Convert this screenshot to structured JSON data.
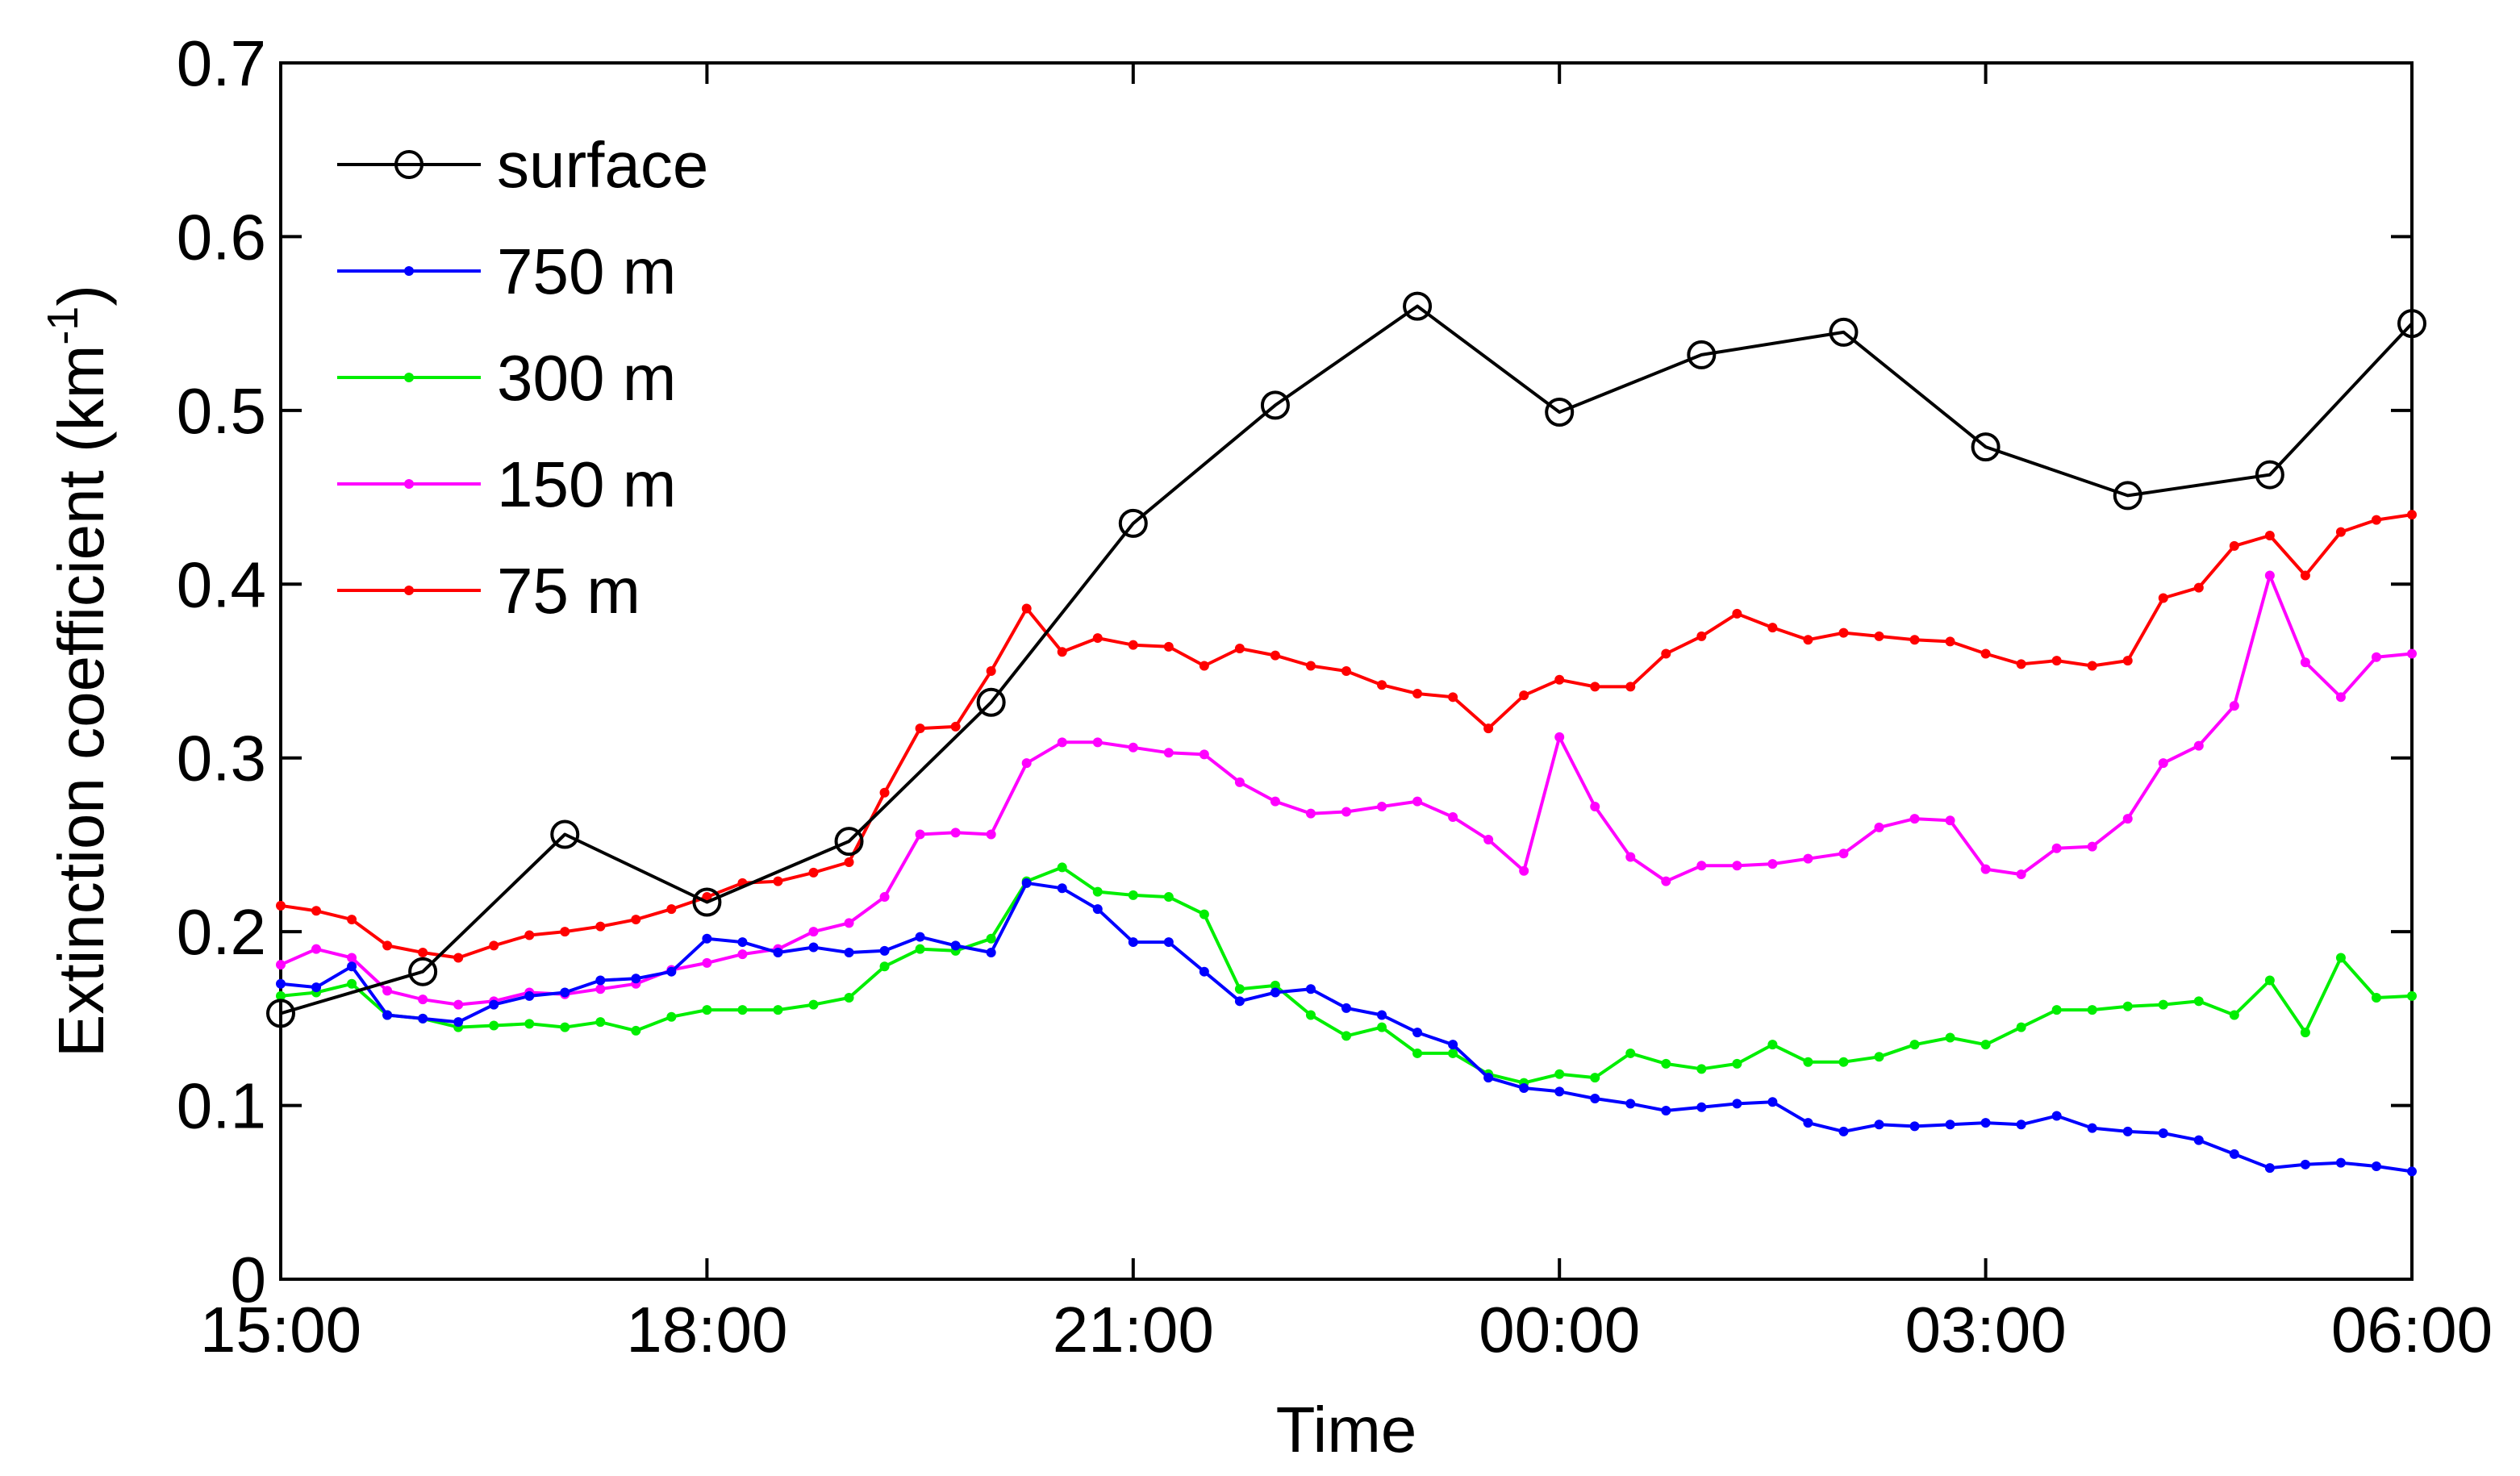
{
  "chart_data": {
    "type": "line",
    "title": "",
    "xlabel": "Time",
    "ylabel": "Extinction coefficient (km",
    "ylabel_superscript": "-1",
    "ylabel_close": ")",
    "x_unit": "hours since 15:00",
    "xlim": [
      0,
      15
    ],
    "ylim": [
      0,
      0.7
    ],
    "xticks": [
      0,
      3,
      6,
      9,
      12,
      15
    ],
    "xtick_labels": [
      "15:00",
      "18:00",
      "21:00",
      "00:00",
      "03:00",
      "06:00"
    ],
    "yticks": [
      0,
      0.1,
      0.2,
      0.3,
      0.4,
      0.5,
      0.6,
      0.7
    ],
    "ytick_labels": [
      "0",
      "0.1",
      "0.2",
      "0.3",
      "0.4",
      "0.5",
      "0.6",
      "0.7"
    ],
    "legend_position": "top-left",
    "series": [
      {
        "name": "surface",
        "color": "#000000",
        "marker": "open-circle",
        "x": [
          0,
          1,
          2,
          3,
          4,
          5,
          6,
          7,
          8,
          9,
          10,
          11,
          12,
          13,
          14,
          15
        ],
        "values": [
          0.153,
          0.177,
          0.256,
          0.217,
          0.252,
          0.332,
          0.435,
          0.503,
          0.56,
          0.499,
          0.532,
          0.545,
          0.479,
          0.451,
          0.463,
          0.55
        ]
      },
      {
        "name": "750 m",
        "color": "#0000ff",
        "marker": "dot",
        "x": [
          0,
          0.25,
          0.5,
          0.75,
          1,
          1.25,
          1.5,
          1.75,
          2,
          2.25,
          2.5,
          2.75,
          3,
          3.25,
          3.5,
          3.75,
          4,
          4.25,
          4.5,
          4.75,
          5,
          5.25,
          5.5,
          5.75,
          6,
          6.25,
          6.5,
          6.75,
          7,
          7.25,
          7.5,
          7.75,
          8,
          8.25,
          8.5,
          8.75,
          9,
          9.25,
          9.5,
          9.75,
          10,
          10.25,
          10.5,
          10.75,
          11,
          11.25,
          11.5,
          11.75,
          12,
          12.25,
          12.5,
          12.75,
          13,
          13.25,
          13.5,
          13.75,
          14,
          14.25,
          14.5,
          14.75,
          15
        ],
        "values": [
          0.17,
          0.168,
          0.18,
          0.152,
          0.15,
          0.148,
          0.158,
          0.163,
          0.165,
          0.172,
          0.173,
          0.177,
          0.196,
          0.194,
          0.188,
          0.191,
          0.188,
          0.189,
          0.197,
          0.192,
          0.188,
          0.228,
          0.225,
          0.213,
          0.194,
          0.194,
          0.177,
          0.16,
          0.165,
          0.167,
          0.156,
          0.152,
          0.142,
          0.135,
          0.116,
          0.11,
          0.108,
          0.104,
          0.101,
          0.097,
          0.099,
          0.101,
          0.102,
          0.09,
          0.085,
          0.089,
          0.088,
          0.089,
          0.09,
          0.089,
          0.094,
          0.087,
          0.085,
          0.084,
          0.08,
          0.072,
          0.064,
          0.066,
          0.067,
          0.065,
          0.062
        ]
      },
      {
        "name": "300 m",
        "color": "#00ee00",
        "marker": "dot",
        "x": [
          0,
          0.25,
          0.5,
          0.75,
          1,
          1.25,
          1.5,
          1.75,
          2,
          2.25,
          2.5,
          2.75,
          3,
          3.25,
          3.5,
          3.75,
          4,
          4.25,
          4.5,
          4.75,
          5,
          5.25,
          5.5,
          5.75,
          6,
          6.25,
          6.5,
          6.75,
          7,
          7.25,
          7.5,
          7.75,
          8,
          8.25,
          8.5,
          8.75,
          9,
          9.25,
          9.5,
          9.75,
          10,
          10.25,
          10.5,
          10.75,
          11,
          11.25,
          11.5,
          11.75,
          12,
          12.25,
          12.5,
          12.75,
          13,
          13.25,
          13.5,
          13.75,
          14,
          14.25,
          14.5,
          14.75,
          15
        ],
        "values": [
          0.163,
          0.165,
          0.17,
          0.152,
          0.15,
          0.145,
          0.146,
          0.147,
          0.145,
          0.148,
          0.143,
          0.151,
          0.155,
          0.155,
          0.155,
          0.158,
          0.162,
          0.18,
          0.19,
          0.189,
          0.196,
          0.229,
          0.237,
          0.223,
          0.221,
          0.22,
          0.21,
          0.167,
          0.169,
          0.152,
          0.14,
          0.145,
          0.13,
          0.13,
          0.118,
          0.113,
          0.118,
          0.116,
          0.13,
          0.124,
          0.121,
          0.124,
          0.135,
          0.125,
          0.125,
          0.128,
          0.135,
          0.139,
          0.135,
          0.145,
          0.155,
          0.155,
          0.157,
          0.158,
          0.16,
          0.152,
          0.172,
          0.142,
          0.185,
          0.162,
          0.163
        ]
      },
      {
        "name": "150 m",
        "color": "#ff00ff",
        "marker": "dot",
        "x": [
          0,
          0.25,
          0.5,
          0.75,
          1,
          1.25,
          1.5,
          1.75,
          2,
          2.25,
          2.5,
          2.75,
          3,
          3.25,
          3.5,
          3.75,
          4,
          4.25,
          4.5,
          4.75,
          5,
          5.25,
          5.5,
          5.75,
          6,
          6.25,
          6.5,
          6.75,
          7,
          7.25,
          7.5,
          7.75,
          8,
          8.25,
          8.5,
          8.75,
          9,
          9.25,
          9.5,
          9.75,
          10,
          10.25,
          10.5,
          10.75,
          11,
          11.25,
          11.5,
          11.75,
          12,
          12.25,
          12.5,
          12.75,
          13,
          13.25,
          13.5,
          13.75,
          14,
          14.25,
          14.5,
          14.75,
          15
        ],
        "values": [
          0.181,
          0.19,
          0.185,
          0.166,
          0.161,
          0.158,
          0.16,
          0.165,
          0.164,
          0.167,
          0.17,
          0.178,
          0.182,
          0.187,
          0.19,
          0.2,
          0.205,
          0.22,
          0.256,
          0.257,
          0.256,
          0.297,
          0.309,
          0.309,
          0.306,
          0.303,
          0.302,
          0.286,
          0.275,
          0.268,
          0.269,
          0.272,
          0.275,
          0.266,
          0.253,
          0.235,
          0.312,
          0.272,
          0.243,
          0.229,
          0.238,
          0.238,
          0.239,
          0.242,
          0.245,
          0.26,
          0.265,
          0.264,
          0.236,
          0.233,
          0.248,
          0.249,
          0.265,
          0.297,
          0.307,
          0.33,
          0.405,
          0.355,
          0.335,
          0.358,
          0.36
        ]
      },
      {
        "name": "75 m",
        "color": "#ff0000",
        "marker": "dot",
        "x": [
          0,
          0.25,
          0.5,
          0.75,
          1,
          1.25,
          1.5,
          1.75,
          2,
          2.25,
          2.5,
          2.75,
          3,
          3.25,
          3.5,
          3.75,
          4,
          4.25,
          4.5,
          4.75,
          5,
          5.25,
          5.5,
          5.75,
          6,
          6.25,
          6.5,
          6.75,
          7,
          7.25,
          7.5,
          7.75,
          8,
          8.25,
          8.5,
          8.75,
          9,
          9.25,
          9.5,
          9.75,
          10,
          10.25,
          10.5,
          10.75,
          11,
          11.25,
          11.5,
          11.75,
          12,
          12.25,
          12.5,
          12.75,
          13,
          13.25,
          13.5,
          13.75,
          14,
          14.25,
          14.5,
          14.75,
          15
        ],
        "values": [
          0.215,
          0.212,
          0.207,
          0.192,
          0.188,
          0.185,
          0.192,
          0.198,
          0.2,
          0.203,
          0.207,
          0.213,
          0.22,
          0.228,
          0.229,
          0.234,
          0.24,
          0.28,
          0.317,
          0.318,
          0.35,
          0.386,
          0.361,
          0.369,
          0.365,
          0.364,
          0.353,
          0.363,
          0.359,
          0.353,
          0.35,
          0.342,
          0.337,
          0.335,
          0.317,
          0.336,
          0.345,
          0.341,
          0.341,
          0.36,
          0.37,
          0.383,
          0.375,
          0.368,
          0.372,
          0.37,
          0.368,
          0.367,
          0.36,
          0.354,
          0.356,
          0.353,
          0.356,
          0.392,
          0.398,
          0.422,
          0.428,
          0.405,
          0.43,
          0.437,
          0.44
        ]
      }
    ]
  }
}
